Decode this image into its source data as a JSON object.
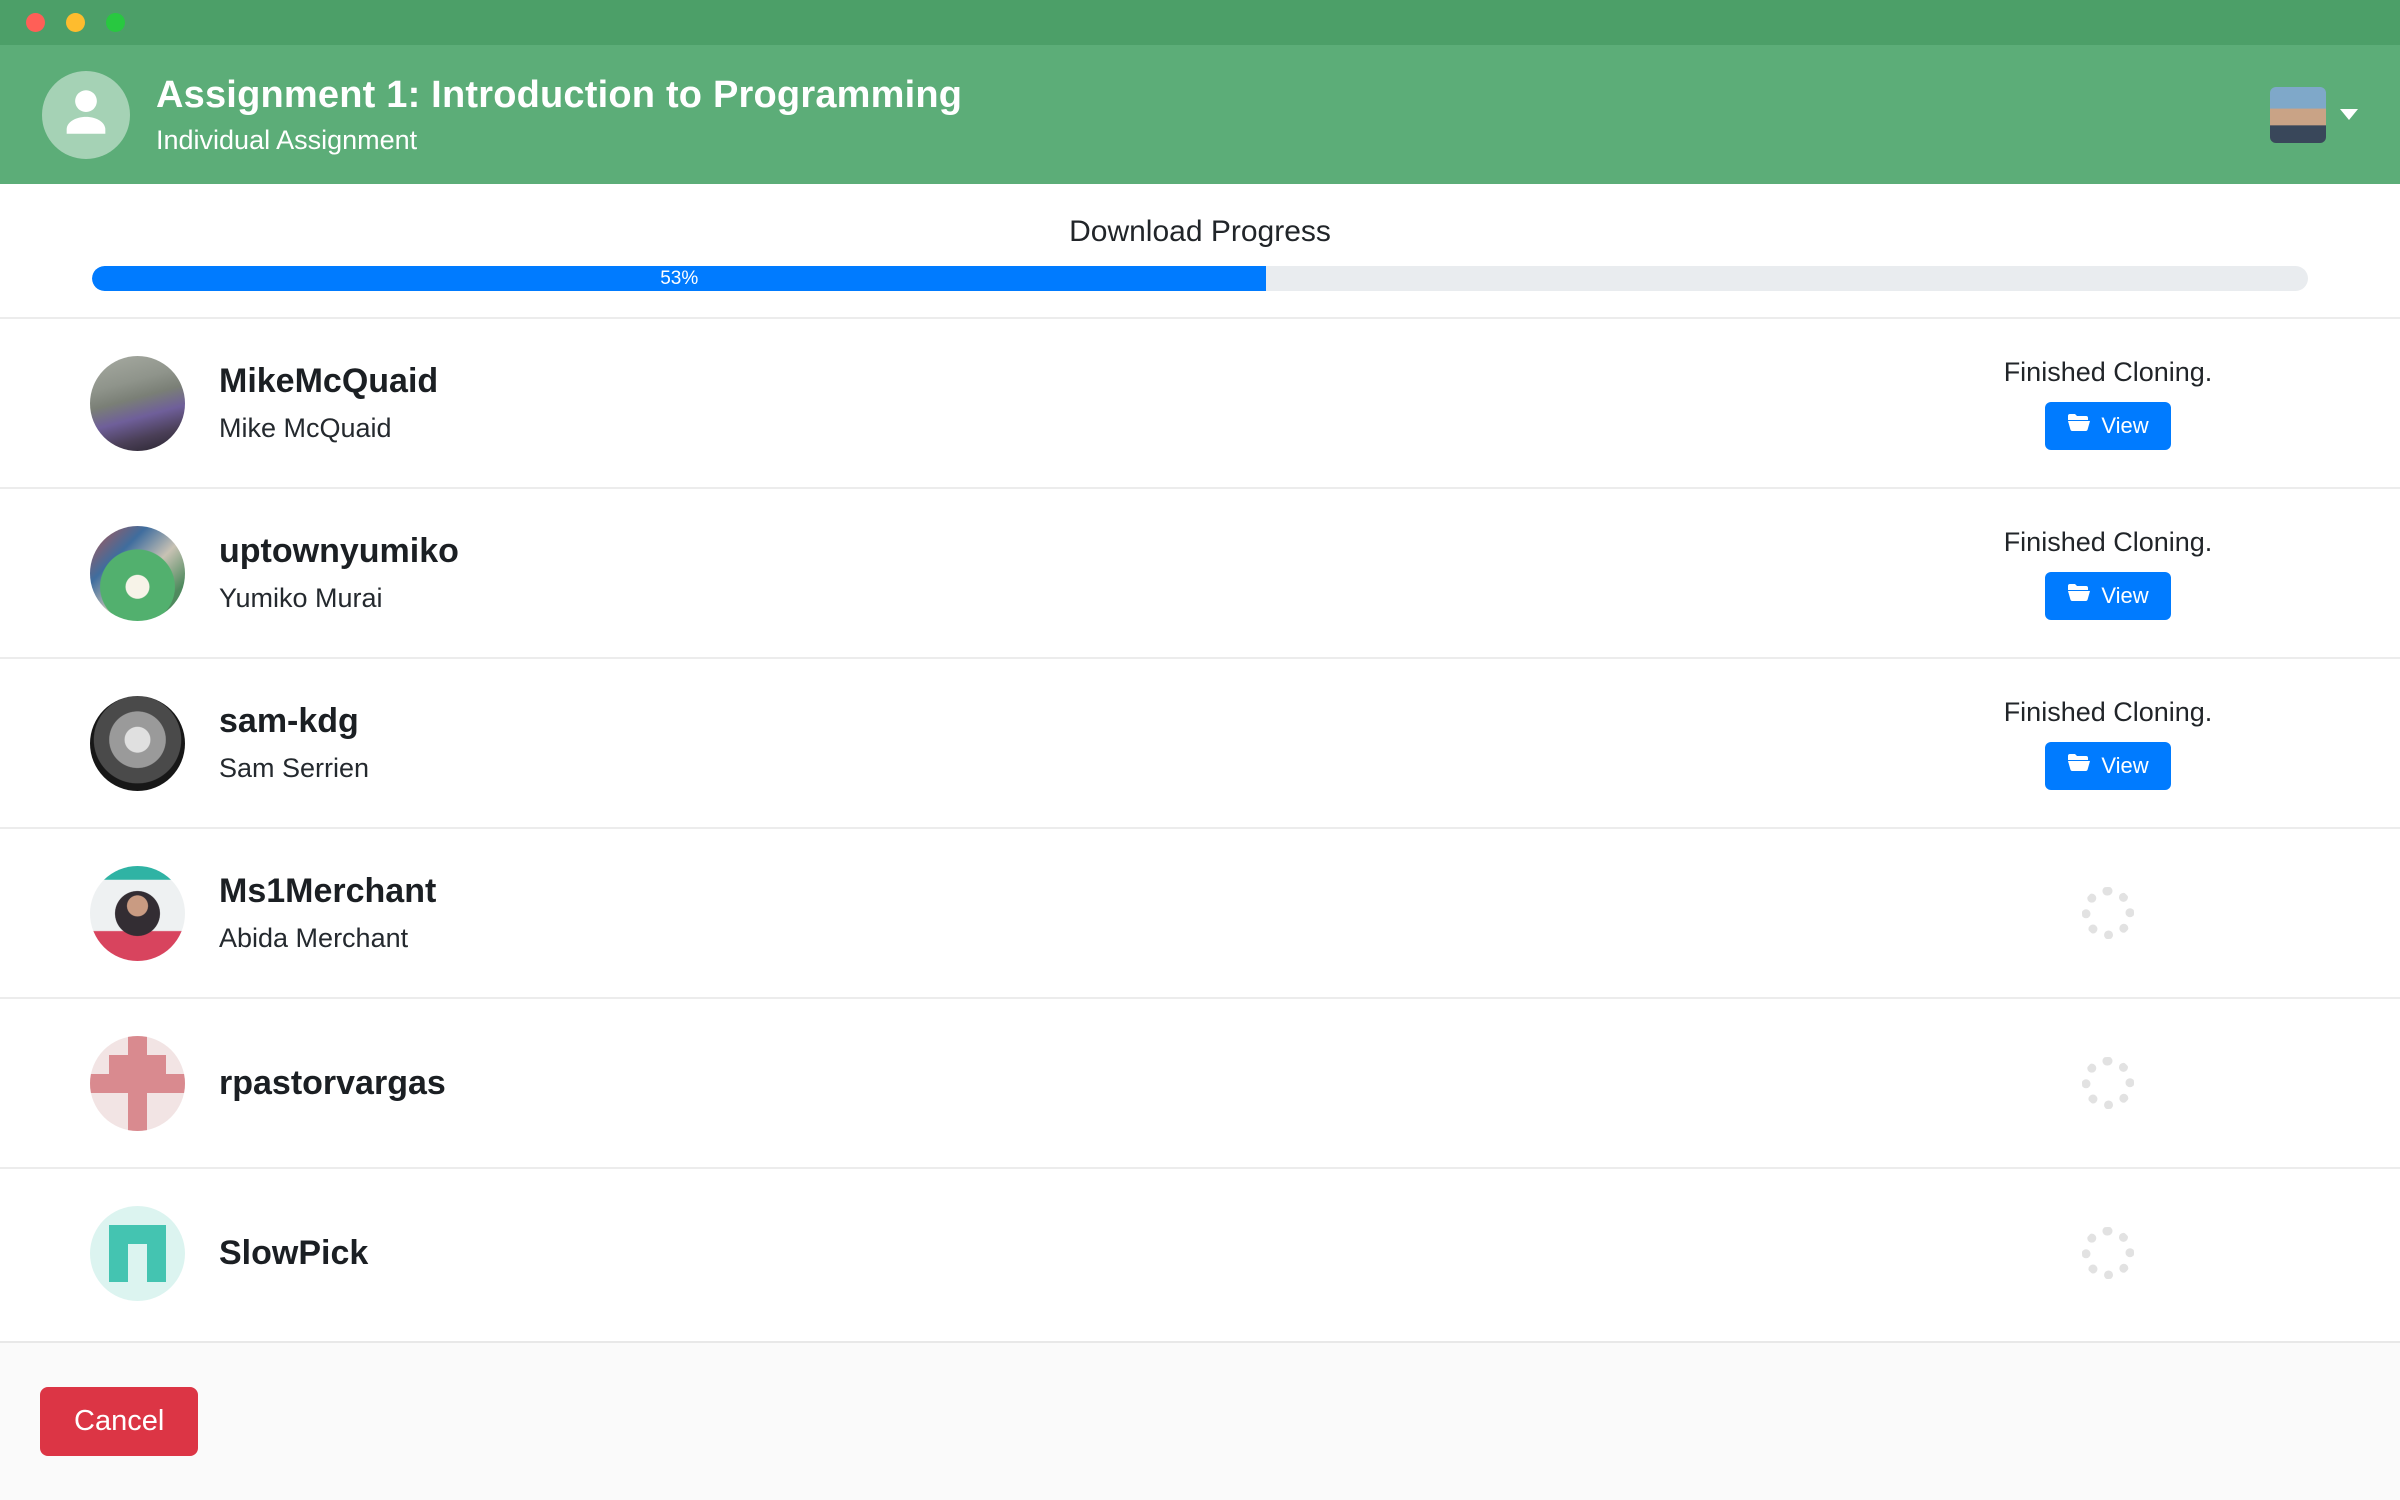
{
  "window": {
    "controls": [
      "close",
      "minimize",
      "zoom"
    ]
  },
  "header": {
    "title": "Assignment 1: Introduction to Programming",
    "subtitle": "Individual Assignment"
  },
  "progress": {
    "label": "Download Progress",
    "percent": 53,
    "percent_label": "53%"
  },
  "rows": [
    {
      "login": "MikeMcQuaid",
      "name": "Mike McQuaid",
      "status": "Finished Cloning.",
      "action": "View",
      "state": "done"
    },
    {
      "login": "uptownyumiko",
      "name": "Yumiko Murai",
      "status": "Finished Cloning.",
      "action": "View",
      "state": "done"
    },
    {
      "login": "sam-kdg",
      "name": "Sam Serrien",
      "status": "Finished Cloning.",
      "action": "View",
      "state": "done"
    },
    {
      "login": "Ms1Merchant",
      "name": "Abida Merchant",
      "state": "loading"
    },
    {
      "login": "rpastorvargas",
      "state": "loading"
    },
    {
      "login": "SlowPick",
      "state": "loading"
    }
  ],
  "footer": {
    "cancel_label": "Cancel"
  },
  "colors": {
    "titlebar_green": "#4c9f68",
    "header_green": "#5cad78",
    "progress_blue": "#007bff",
    "view_button_blue": "#007bff",
    "cancel_red": "#dc3545"
  }
}
